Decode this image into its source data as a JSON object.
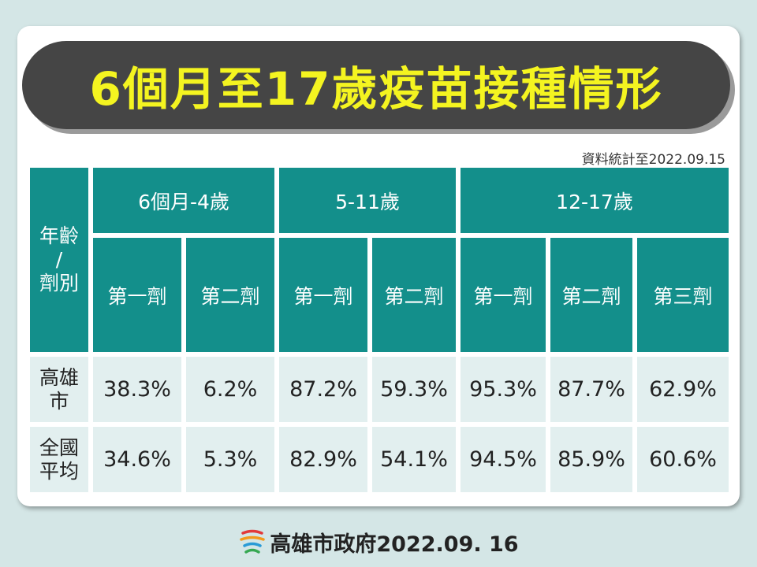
{
  "title": "6個月至17歲疫苗接種情形",
  "source_note": "資料統計至2022.09.15",
  "table": {
    "corner_label": [
      "年齡",
      "/",
      "劑別"
    ],
    "age_groups": [
      "6個月-4歲",
      "5-11歲",
      "12-17歲"
    ],
    "doses": [
      "第一劑",
      "第二劑",
      "第一劑",
      "第二劑",
      "第一劑",
      "第二劑",
      "第三劑"
    ],
    "rows": [
      {
        "label": [
          "高雄",
          "市"
        ],
        "values": [
          "38.3%",
          "6.2%",
          "87.2%",
          "59.3%",
          "95.3%",
          "87.7%",
          "62.9%"
        ]
      },
      {
        "label": [
          "全國",
          "平均"
        ],
        "values": [
          "34.6%",
          "5.3%",
          "82.9%",
          "54.1%",
          "94.5%",
          "85.9%",
          "60.6%"
        ]
      }
    ]
  },
  "footer": {
    "logo_icon": "kaohsiung-logo-icon",
    "text": "高雄市政府2022.09. 16"
  },
  "colors": {
    "teal": "#138f8b",
    "light_cell": "#e2efef",
    "title_bg": "#454545",
    "title_text": "#f4f420"
  }
}
